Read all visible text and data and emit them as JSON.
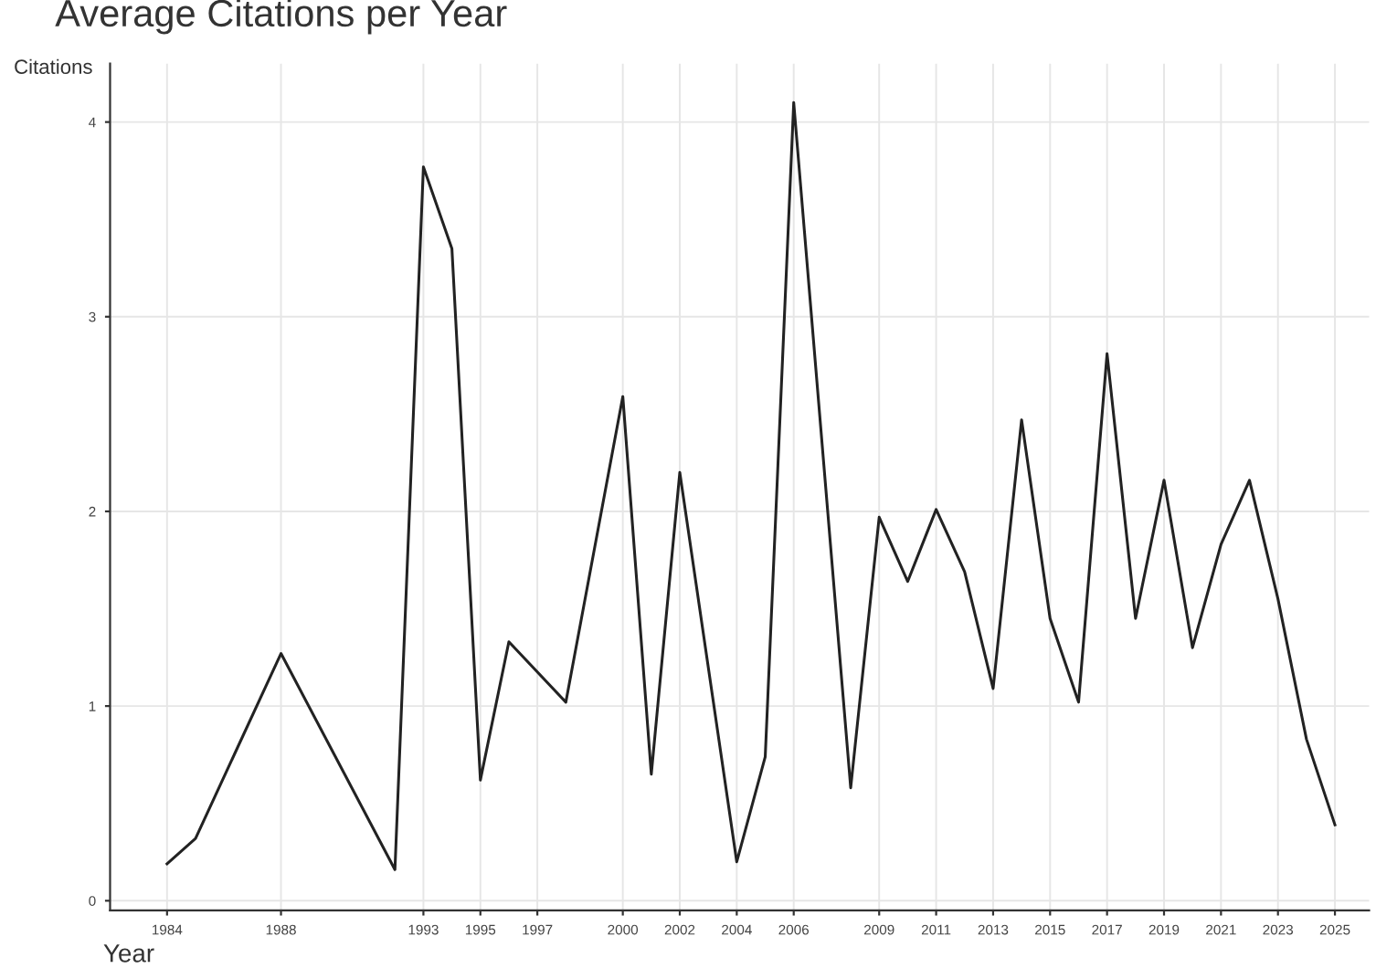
{
  "chart_data": {
    "type": "line",
    "title": "Average Citations per Year",
    "xlabel": "Year",
    "ylabel": "Citations",
    "x": [
      1984,
      1985,
      1988,
      1992,
      1993,
      1994,
      1995,
      1996,
      1998,
      2000,
      2001,
      2002,
      2004,
      2005,
      2006,
      2008,
      2009,
      2010,
      2011,
      2012,
      2013,
      2014,
      2015,
      2016,
      2017,
      2018,
      2019,
      2020,
      2021,
      2022,
      2023,
      2024,
      2025
    ],
    "series": [
      {
        "color": "#222222",
        "values": [
          0.19,
          0.32,
          1.27,
          0.16,
          3.77,
          3.35,
          0.62,
          1.33,
          1.02,
          2.59,
          0.65,
          2.2,
          0.2,
          0.74,
          4.1,
          0.58,
          1.97,
          1.64,
          2.01,
          1.69,
          1.09,
          2.47,
          1.45,
          1.02,
          2.81,
          1.45,
          2.16,
          1.3,
          1.83,
          2.16,
          1.55,
          0.83,
          0.39
        ]
      }
    ],
    "xlim": [
      1982,
      2026.2
    ],
    "ylim": [
      -0.05,
      4.3
    ],
    "xticks": [
      1984,
      1988,
      1993,
      1995,
      1997,
      2000,
      2002,
      2004,
      2006,
      2009,
      2011,
      2013,
      2015,
      2017,
      2019,
      2021,
      2023,
      2025
    ],
    "yticks": [
      0,
      1,
      2,
      3,
      4
    ],
    "grid": true,
    "marker": "none",
    "line_style": "solid",
    "legend": false
  }
}
